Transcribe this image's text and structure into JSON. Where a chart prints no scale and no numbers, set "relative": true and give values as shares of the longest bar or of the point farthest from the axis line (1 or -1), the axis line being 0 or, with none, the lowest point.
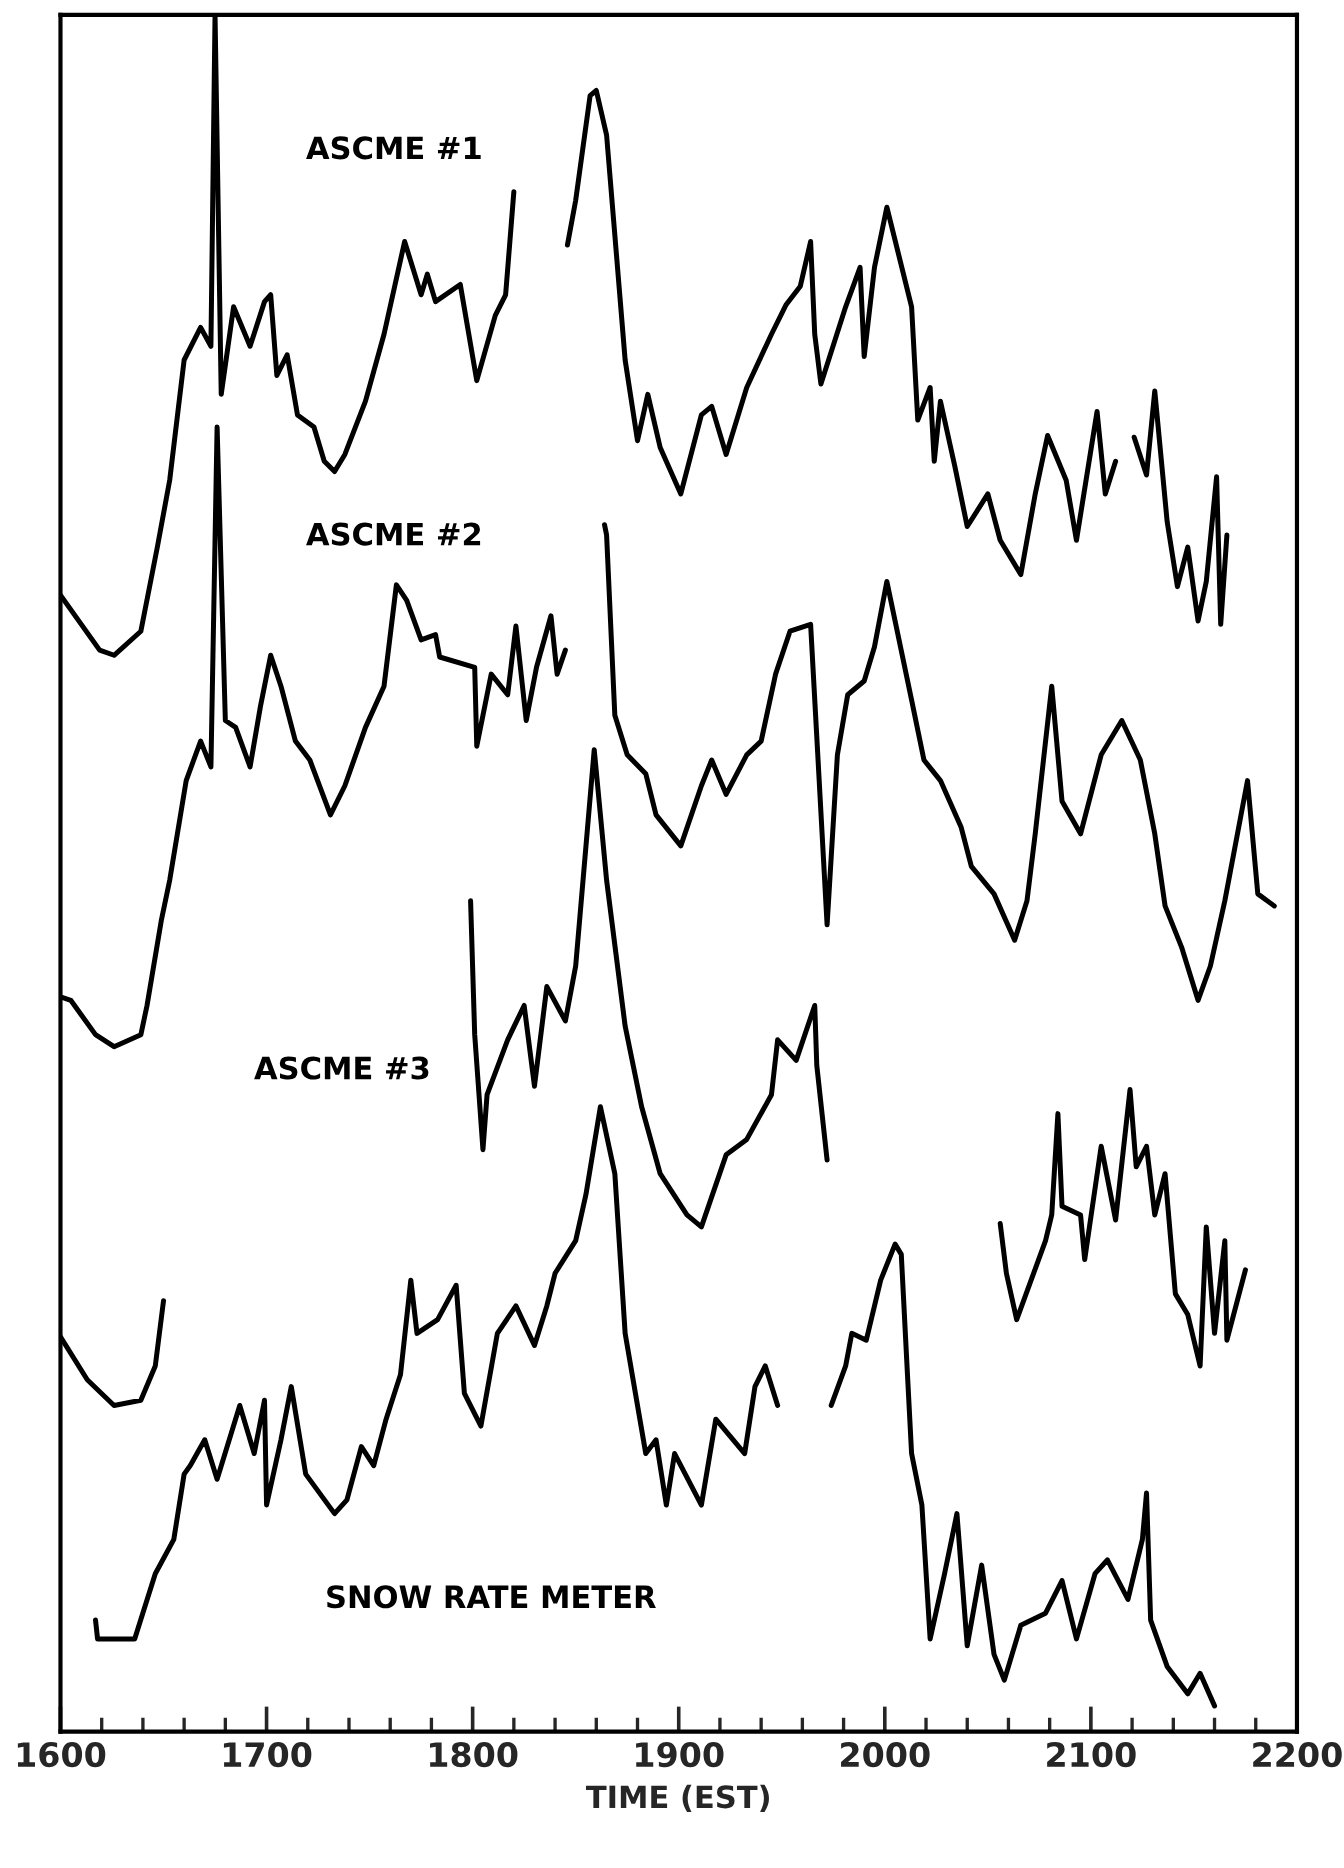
{
  "chart_data": {
    "type": "line",
    "relative": true,
    "xlabel": "TIME (EST)",
    "xlim": [
      1600,
      2200
    ],
    "xticks": [
      1600,
      {
        "value": 1620,
        "label": null
      },
      {
        "value": 1640,
        "label": null
      },
      {
        "value": 1660,
        "label": null
      },
      {
        "value": 1680,
        "label": null
      },
      1700,
      {
        "value": 1720,
        "label": null
      },
      {
        "value": 1740,
        "label": null
      },
      {
        "value": 1760,
        "label": null
      },
      {
        "value": 1780,
        "label": null
      },
      1800,
      {
        "value": 1820,
        "label": null
      },
      {
        "value": 1840,
        "label": null
      },
      {
        "value": 1860,
        "label": null
      },
      {
        "value": 1880,
        "label": null
      },
      1900,
      {
        "value": 1920,
        "label": null
      },
      {
        "value": 1940,
        "label": null
      },
      {
        "value": 1960,
        "label": null
      },
      {
        "value": 1980,
        "label": null
      },
      2000,
      {
        "value": 2020,
        "label": null
      },
      {
        "value": 2040,
        "label": null
      },
      {
        "value": 2060,
        "label": null
      },
      {
        "value": 2080,
        "label": null
      },
      2100,
      {
        "value": 2120,
        "label": null
      },
      {
        "value": 2140,
        "label": null
      },
      {
        "value": 2160,
        "label": null
      },
      {
        "value": 2180,
        "label": null
      },
      2200
    ],
    "grid": false,
    "legend": false,
    "marker": "none",
    "line_style": "solid",
    "series": [
      {
        "name": "ASCME #1",
        "color": "#000000",
        "x": [
          1600,
          1619,
          1626,
          1639,
          1647,
          1653,
          1660,
          1668,
          1673,
          1675,
          1678,
          1684,
          1692,
          1699,
          1702,
          1705,
          1710,
          1715,
          1723,
          1728,
          1733,
          1738,
          1748,
          1757,
          1767,
          1775,
          1778,
          1782,
          1794,
          1802,
          1811,
          1816,
          1820,
          1833,
          1846,
          1850,
          1857,
          1860,
          1865,
          1874,
          1880,
          1885,
          1891,
          1901,
          1911,
          1916,
          1923,
          1933,
          1945,
          1952,
          1959,
          1964,
          1966,
          1969,
          1981,
          1988,
          1990,
          1995,
          2001,
          2013,
          2016,
          2022,
          2024,
          2027,
          2034,
          2040,
          2050,
          2056,
          2066,
          2073,
          2079,
          2088,
          2093,
          2103,
          2107,
          2112,
          2117,
          2121,
          2127,
          2131,
          2137,
          2142,
          2147,
          2152,
          2156,
          2161,
          2163,
          2166
        ],
        "values": [
          0.662,
          0.63,
          0.627,
          0.641,
          0.69,
          0.729,
          0.799,
          0.818,
          0.807,
          1.0,
          0.779,
          0.83,
          0.807,
          0.833,
          0.837,
          0.79,
          0.802,
          0.767,
          0.76,
          0.74,
          0.734,
          0.744,
          0.775,
          0.814,
          0.868,
          0.837,
          0.849,
          0.833,
          0.843,
          0.787,
          0.825,
          0.837,
          0.897,
          null,
          0.866,
          0.892,
          0.953,
          0.956,
          0.93,
          0.799,
          0.752,
          0.779,
          0.748,
          0.721,
          0.767,
          0.772,
          0.744,
          0.783,
          0.814,
          0.831,
          0.842,
          0.868,
          0.814,
          0.785,
          0.83,
          0.853,
          0.801,
          0.853,
          0.888,
          0.83,
          0.764,
          0.783,
          0.74,
          0.775,
          0.737,
          0.702,
          0.721,
          0.694,
          0.674,
          0.721,
          0.755,
          0.729,
          0.694,
          0.769,
          0.721,
          0.74,
          null,
          0.754,
          0.732,
          0.781,
          0.705,
          0.667,
          0.69,
          0.647,
          0.67,
          0.731,
          0.645,
          0.697
        ]
      },
      {
        "name": "ASCME #2",
        "color": "#000000",
        "x": [
          1600,
          1605,
          1617,
          1626,
          1639,
          1642,
          1649,
          1653,
          1661,
          1668,
          1673,
          1676,
          1680,
          1685,
          1692,
          1697,
          1702,
          1707,
          1714,
          1721,
          1731,
          1738,
          1748,
          1757,
          1763,
          1768,
          1775,
          1782,
          1784,
          1801,
          1802,
          1809,
          1817,
          1821,
          1826,
          1831,
          1838,
          1841,
          1845,
          1855,
          1864,
          1865,
          1869,
          1875,
          1884,
          1889,
          1901,
          1911,
          1916,
          1923,
          1933,
          1940,
          1947,
          1954,
          1964,
          1972,
          1977,
          1982,
          1990,
          1995,
          2001,
          2013,
          2019,
          2027,
          2037,
          2042,
          2053,
          2063,
          2069,
          2073,
          2081,
          2086,
          2095,
          2105,
          2115,
          2124,
          2131,
          2136,
          2144,
          2152,
          2158,
          2165,
          2176,
          2181,
          2189
        ],
        "values": [
          0.428,
          0.426,
          0.406,
          0.399,
          0.406,
          0.423,
          0.473,
          0.496,
          0.554,
          0.577,
          0.562,
          0.76,
          0.589,
          0.585,
          0.562,
          0.597,
          0.627,
          0.609,
          0.577,
          0.566,
          0.534,
          0.551,
          0.585,
          0.609,
          0.668,
          0.659,
          0.636,
          0.639,
          0.626,
          0.62,
          0.574,
          0.616,
          0.604,
          0.644,
          0.589,
          0.62,
          0.65,
          0.616,
          0.63,
          null,
          0.703,
          0.697,
          0.592,
          0.569,
          0.558,
          0.534,
          0.516,
          0.551,
          0.566,
          0.546,
          0.569,
          0.577,
          0.616,
          0.641,
          0.645,
          0.47,
          0.569,
          0.604,
          0.612,
          0.632,
          0.67,
          0.601,
          0.566,
          0.554,
          0.527,
          0.504,
          0.488,
          0.461,
          0.484,
          0.523,
          0.609,
          0.542,
          0.523,
          0.569,
          0.589,
          0.566,
          0.523,
          0.481,
          0.457,
          0.426,
          0.446,
          0.484,
          0.554,
          0.488,
          0.481
        ]
      },
      {
        "name": "ASCME #3",
        "color": "#000000",
        "x": [
          1600,
          1613,
          1626,
          1639,
          1646,
          1650,
          1720,
          1799,
          1801,
          1805,
          1807,
          1817,
          1825,
          1830,
          1836,
          1845,
          1850,
          1859,
          1865,
          1874,
          1882,
          1891,
          1904,
          1911,
          1923,
          1933,
          1945,
          1948,
          1957,
          1966,
          1967,
          1972,
          2010,
          2056,
          2059,
          2064,
          2071,
          2078,
          2081,
          2084,
          2086,
          2095,
          2097,
          2105,
          2112,
          2119,
          2122,
          2127,
          2131,
          2136,
          2141,
          2147,
          2153,
          2156,
          2160,
          2165,
          2166,
          2175
        ],
        "values": [
          0.23,
          0.205,
          0.19,
          0.193,
          0.213,
          0.251,
          null,
          0.484,
          0.406,
          0.339,
          0.371,
          0.403,
          0.423,
          0.376,
          0.434,
          0.414,
          0.446,
          0.572,
          0.496,
          0.411,
          0.364,
          0.325,
          0.301,
          0.294,
          0.336,
          0.345,
          0.371,
          0.403,
          0.391,
          0.423,
          0.388,
          0.333,
          null,
          0.296,
          0.267,
          0.24,
          0.263,
          0.286,
          0.301,
          0.36,
          0.306,
          0.301,
          0.275,
          0.341,
          0.298,
          0.374,
          0.329,
          0.341,
          0.301,
          0.325,
          0.255,
          0.243,
          0.213,
          0.294,
          0.232,
          0.286,
          0.228,
          0.269
        ]
      },
      {
        "name": "SNOW RATE METER",
        "color": "#000000",
        "x": [
          1617,
          1618,
          1636,
          1646,
          1655,
          1660,
          1663,
          1670,
          1676,
          1687,
          1694,
          1699,
          1700,
          1707,
          1712,
          1719,
          1733,
          1739,
          1746,
          1752,
          1758,
          1765,
          1770,
          1773,
          1783,
          1792,
          1796,
          1804,
          1812,
          1821,
          1830,
          1836,
          1840,
          1850,
          1855,
          1862,
          1869,
          1874,
          1884,
          1889,
          1894,
          1898,
          1911,
          1918,
          1932,
          1937,
          1942,
          1948,
          1960,
          1974,
          1981,
          1984,
          1991,
          1998,
          2005,
          2008,
          2011,
          2013,
          2018,
          2022,
          2029,
          2035,
          2040,
          2047,
          2053,
          2058,
          2066,
          2078,
          2086,
          2093,
          2102,
          2108,
          2118,
          2125,
          2127,
          2129,
          2137,
          2147,
          2153,
          2160
        ],
        "values": [
          0.065,
          0.054,
          0.054,
          0.092,
          0.112,
          0.15,
          0.155,
          0.17,
          0.147,
          0.19,
          0.162,
          0.193,
          0.132,
          0.17,
          0.201,
          0.15,
          0.127,
          0.135,
          0.166,
          0.155,
          0.182,
          0.208,
          0.263,
          0.232,
          0.24,
          0.26,
          0.197,
          0.178,
          0.232,
          0.248,
          0.225,
          0.248,
          0.267,
          0.286,
          0.313,
          0.364,
          0.325,
          0.232,
          0.162,
          0.17,
          0.132,
          0.162,
          0.132,
          0.182,
          0.162,
          0.201,
          0.213,
          0.19,
          null,
          0.19,
          0.213,
          0.232,
          0.228,
          0.263,
          0.284,
          0.278,
          0.208,
          0.162,
          0.132,
          0.054,
          0.092,
          0.127,
          0.05,
          0.097,
          0.045,
          0.03,
          0.062,
          0.069,
          0.088,
          0.054,
          0.092,
          0.1,
          0.077,
          0.112,
          0.139,
          0.065,
          0.038,
          0.022,
          0.034,
          0.015
        ]
      }
    ]
  }
}
